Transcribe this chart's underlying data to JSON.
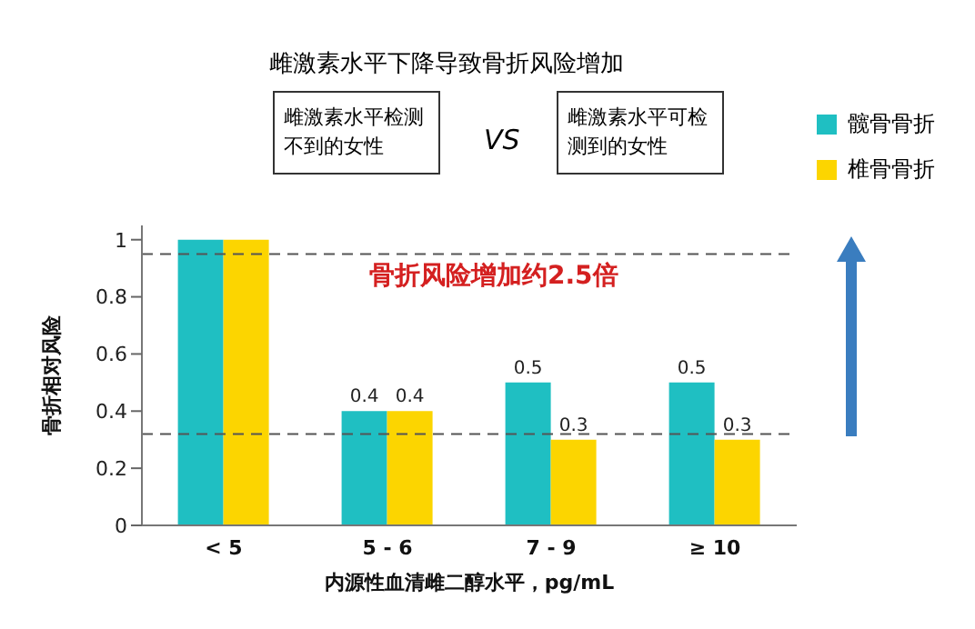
{
  "chart_data": {
    "type": "bar",
    "title": "雌激素水平下降导致骨折风险增加",
    "xlabel": "内源性血清雌二醇水平，pg/mL",
    "ylabel": "骨折相对风险",
    "categories": [
      "< 5",
      "5 - 6",
      "7 - 9",
      "≥ 10"
    ],
    "series": [
      {
        "name": "髋骨骨折",
        "color": "#1fbfc2",
        "values": [
          1,
          0.4,
          0.5,
          0.5
        ],
        "value_labels": [
          null,
          "0.4",
          "0.5",
          "0.5"
        ]
      },
      {
        "name": "椎骨骨折",
        "color": "#fcd500",
        "values": [
          1,
          0.4,
          0.3,
          0.3
        ],
        "value_labels": [
          null,
          "0.4",
          "0.3",
          "0.3"
        ]
      }
    ],
    "ylim": [
      0,
      1.05
    ],
    "yticks": [
      0,
      0.2,
      0.4,
      0.6,
      0.8,
      1
    ],
    "legend": "top right",
    "ref_lines": [
      {
        "axis": "y",
        "value": 0.95,
        "label": null,
        "color": "#555555",
        "line_style": "dashed"
      },
      {
        "axis": "y",
        "value": 0.32,
        "label": null,
        "color": "#555555",
        "line_style": "dashed"
      }
    ],
    "annotations": [
      "雌激素水平检测不到的女性",
      "VS",
      "雌激素水平可检测到的女性",
      "骨折风险增加约2.5倍"
    ]
  }
}
